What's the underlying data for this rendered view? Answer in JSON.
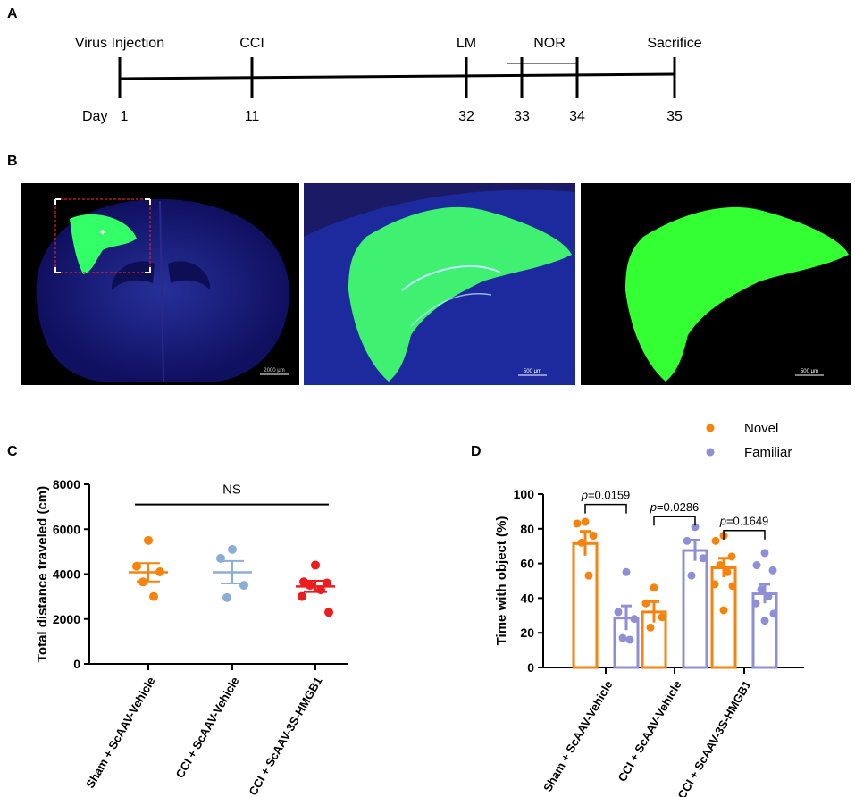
{
  "panels": {
    "a": {
      "letter": "A",
      "day_prefix": "Day",
      "events": [
        {
          "label": "Virus Injection",
          "day": 1,
          "day_label": "1"
        },
        {
          "label": "CCI",
          "day": 11,
          "day_label": "11"
        },
        {
          "label": "LM",
          "day": 32,
          "day_label": "32"
        },
        {
          "label": "",
          "day": 33,
          "day_label": "33"
        },
        {
          "label": "",
          "day": 34,
          "day_label": "34"
        },
        {
          "label": "Sacrifice",
          "day": 35,
          "day_label": "35"
        }
      ],
      "range_label": "NOR"
    },
    "b": {
      "letter": "B",
      "images": [
        {
          "description_name": "whole-brain-section",
          "scale_bar": "2000 μm",
          "colors": {
            "background": "#000000",
            "tissue": "#14147a",
            "signal": "#33ff66"
          }
        },
        {
          "description_name": "hippocampus-zoom-merged",
          "scale_bar": "500 μm",
          "colors": {
            "background": "#1a1a66",
            "tissue": "#1c2a9e",
            "signal": "#40f070"
          }
        },
        {
          "description_name": "hippocampus-zoom-green",
          "scale_bar": "500 μm",
          "colors": {
            "background": "#000000",
            "signal": "#33ff33"
          }
        }
      ]
    },
    "c": {
      "letter": "C",
      "chart_data": {
        "type": "scatter",
        "ylabel": "Total distance traveled (cm)",
        "ylim": [
          0,
          8000
        ],
        "yticks": [
          0,
          2000,
          4000,
          6000,
          8000
        ],
        "categories": [
          "Sham + ScAAV-Vehicle",
          "CCI + ScAAV-Vehicle",
          "CCI + ScAAV-3S-HMGB1"
        ],
        "groups": [
          {
            "color": "#f7820c",
            "points": [
              5500,
              4350,
              4100,
              3650,
              3000
            ],
            "mean": 4080,
            "sem": 410
          },
          {
            "color": "#8caed6",
            "points": [
              5100,
              4700,
              3500,
              2950
            ],
            "mean": 4080,
            "sem": 500
          },
          {
            "color": "#ee1c1c",
            "points": [
              4400,
              3650,
              3600,
              3500,
              3300,
              3000,
              2300
            ],
            "mean": 3450,
            "sem": 250
          }
        ],
        "annotation": {
          "text": "NS",
          "from": 0,
          "to": 2,
          "y": 7100
        }
      }
    },
    "d": {
      "letter": "D",
      "chart_data": {
        "type": "bar",
        "ylabel": "Time with object (%)",
        "ylim": [
          0,
          100
        ],
        "yticks": [
          0,
          20,
          40,
          60,
          80,
          100
        ],
        "categories": [
          "Sham + ScAAV-Vehicle",
          "CCI + ScAAV-Vehicle",
          "CCI + ScAAV-3S-HMGB1"
        ],
        "legend": {
          "position": "top-right"
        },
        "series": [
          {
            "name": "Novel",
            "color": "#f7820c",
            "means": [
              71.5,
              32,
              57.5
            ],
            "sems": [
              7,
              6,
              5.5
            ],
            "points": [
              [
                84,
                83,
                76,
                72,
                53
              ],
              [
                46,
                37,
                29,
                23
              ],
              [
                76,
                73,
                64,
                59,
                55,
                48,
                47,
                33
              ]
            ]
          },
          {
            "name": "Familiar",
            "color": "#8f8fd6",
            "means": [
              28.5,
              67.5,
              42.5
            ],
            "sems": [
              7,
              6,
              5.5
            ],
            "points": [
              [
                55,
                32,
                28,
                17,
                16
              ],
              [
                81,
                73,
                63,
                53
              ],
              [
                66,
                59,
                56,
                45,
                41,
                37,
                31,
                27
              ]
            ]
          }
        ],
        "comparisons": [
          {
            "group": 0,
            "label": "=0.0159",
            "y": 94
          },
          {
            "group": 1,
            "label": "=0.0286",
            "y": 87
          },
          {
            "group": 2,
            "label": "=0.1649",
            "y": 79
          }
        ],
        "p_symbol": "p"
      }
    }
  }
}
